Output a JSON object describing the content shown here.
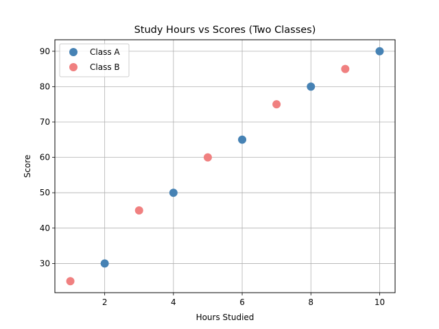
{
  "chart_data": {
    "type": "scatter",
    "title": "Study Hours vs Scores (Two Classes)",
    "xlabel": "Hours Studied",
    "ylabel": "Score",
    "xlim": [
      0.55,
      10.45
    ],
    "ylim": [
      21.75,
      93.25
    ],
    "xticks": [
      2,
      4,
      6,
      8,
      10
    ],
    "yticks": [
      30,
      40,
      50,
      60,
      70,
      80,
      90
    ],
    "grid": true,
    "legend_position": "top-left",
    "series": [
      {
        "name": "Class A",
        "color": "#4682b4",
        "x": [
          2,
          4,
          6,
          8,
          10
        ],
        "y": [
          30,
          50,
          65,
          80,
          90
        ]
      },
      {
        "name": "Class B",
        "color": "#f08080",
        "x": [
          1,
          3,
          5,
          7,
          9
        ],
        "y": [
          25,
          45,
          60,
          75,
          85
        ]
      }
    ]
  }
}
